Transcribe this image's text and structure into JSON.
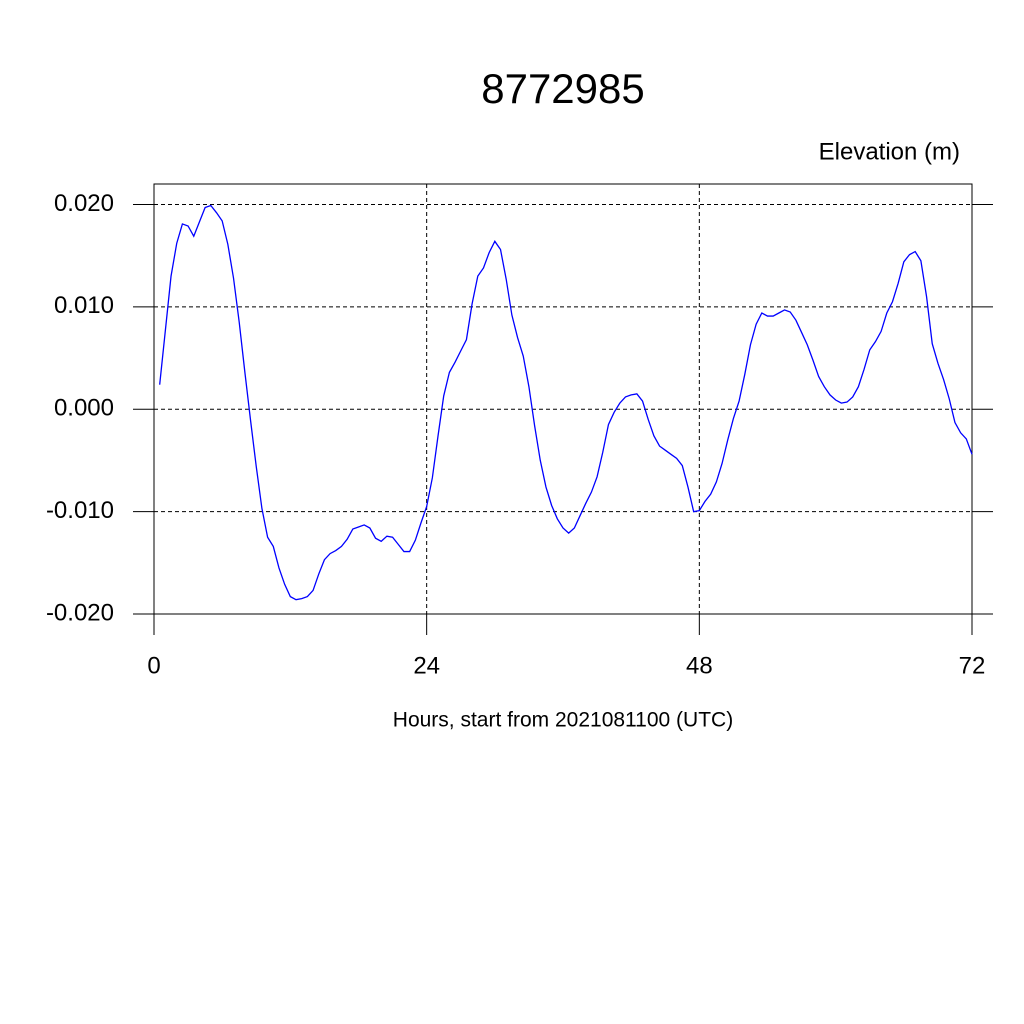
{
  "chart_data": {
    "type": "line",
    "title": "8772985",
    "subtitle": "Elevation (m)",
    "x_label": "Hours, start from 2021081100 (UTC)",
    "xlim": [
      0,
      72
    ],
    "xticks": [
      0,
      24,
      48,
      72
    ],
    "ylim": [
      -0.02,
      0.022
    ],
    "yticks": [
      {
        "value": -0.02,
        "label": "-0.020"
      },
      {
        "value": -0.01,
        "label": "-0.010"
      },
      {
        "value": 0,
        "label": "0.000"
      },
      {
        "value": 0.01,
        "label": "0.010"
      },
      {
        "value": 0.02,
        "label": "0.020"
      }
    ],
    "grid": true,
    "series": [
      {
        "name": "Elevation",
        "color": "#0000ff",
        "x": [
          0.5,
          1,
          1.5,
          2,
          2.5,
          3,
          3.5,
          4,
          4.5,
          5,
          5.5,
          6,
          6.5,
          7,
          7.5,
          8,
          8.5,
          9,
          9.5,
          10,
          10.5,
          11,
          11.5,
          12,
          12.5,
          13,
          13.5,
          14,
          14.5,
          15,
          15.5,
          16,
          16.5,
          17,
          17.5,
          18,
          18.5,
          19,
          19.5,
          20,
          20.5,
          21,
          21.5,
          22,
          22.5,
          23,
          23.5,
          24,
          24.5,
          25,
          25.5,
          26,
          26.5,
          27,
          27.5,
          28,
          28.5,
          29,
          29.5,
          30,
          30.5,
          31,
          31.5,
          32,
          32.5,
          33,
          33.5,
          34,
          34.5,
          35,
          35.5,
          36,
          36.5,
          37,
          37.5,
          38,
          38.5,
          39,
          39.5,
          40,
          40.5,
          41,
          41.5,
          42,
          42.5,
          43,
          43.5,
          44,
          44.5,
          45,
          45.5,
          46,
          46.5,
          47,
          47.5,
          48,
          48.5,
          49,
          49.5,
          50,
          50.5,
          51,
          51.5,
          52,
          52.5,
          53,
          53.5,
          54,
          54.5,
          55,
          55.5,
          56,
          56.5,
          57,
          57.5,
          58,
          58.5,
          59,
          59.5,
          60,
          60.5,
          61,
          61.5,
          62,
          62.5,
          63,
          63.5,
          64,
          64.5,
          65,
          65.5,
          66,
          66.5,
          67,
          67.5,
          68,
          68.5,
          69,
          69.5,
          70,
          70.5,
          71,
          71.5,
          72
        ],
        "values": [
          0.0024,
          0.0077,
          0.013,
          0.0162,
          0.0181,
          0.0179,
          0.0169,
          0.0183,
          0.0197,
          0.0199,
          0.0192,
          0.0184,
          0.0161,
          0.0128,
          0.0085,
          0.0036,
          -0.0011,
          -0.0056,
          -0.0097,
          -0.0125,
          -0.0134,
          -0.0155,
          -0.0171,
          -0.0183,
          -0.0186,
          -0.0185,
          -0.0183,
          -0.0177,
          -0.0161,
          -0.0147,
          -0.0141,
          -0.0138,
          -0.0134,
          -0.0127,
          -0.0117,
          -0.0115,
          -0.0113,
          -0.0116,
          -0.0126,
          -0.0129,
          -0.0124,
          -0.0125,
          -0.0132,
          -0.0139,
          -0.0139,
          -0.0128,
          -0.0111,
          -0.0095,
          -0.0067,
          -0.0026,
          0.0013,
          0.0036,
          0.0046,
          0.0057,
          0.0068,
          0.0103,
          0.013,
          0.0138,
          0.0153,
          0.0164,
          0.0156,
          0.0127,
          0.0092,
          0.007,
          0.0052,
          0.0022,
          -0.0016,
          -0.005,
          -0.0076,
          -0.0094,
          -0.0107,
          -0.0116,
          -0.0121,
          -0.0116,
          -0.0104,
          -0.0092,
          -0.0081,
          -0.0066,
          -0.0042,
          -0.0015,
          -0.0003,
          0.0006,
          0.0012,
          0.0014,
          0.0015,
          0.0008,
          -0.001,
          -0.0026,
          -0.0036,
          -0.004,
          -0.0044,
          -0.0048,
          -0.0055,
          -0.0076,
          -0.01,
          -0.0099,
          -0.009,
          -0.0083,
          -0.0071,
          -0.0053,
          -0.003,
          -0.0009,
          0.0008,
          0.0034,
          0.0063,
          0.0083,
          0.0094,
          0.0091,
          0.0091,
          0.0094,
          0.0097,
          0.0095,
          0.0087,
          0.0075,
          0.0063,
          0.0048,
          0.0032,
          0.0022,
          0.0014,
          0.0009,
          0.0006,
          0.0007,
          0.0012,
          0.0022,
          0.0039,
          0.0058,
          0.0066,
          0.0076,
          0.0094,
          0.0105,
          0.0123,
          0.0144,
          0.0151,
          0.0154,
          0.0145,
          0.011,
          0.0064,
          0.0045,
          0.0029,
          0.001,
          -0.0013,
          -0.0023,
          -0.0029,
          -0.0044
        ]
      }
    ]
  }
}
